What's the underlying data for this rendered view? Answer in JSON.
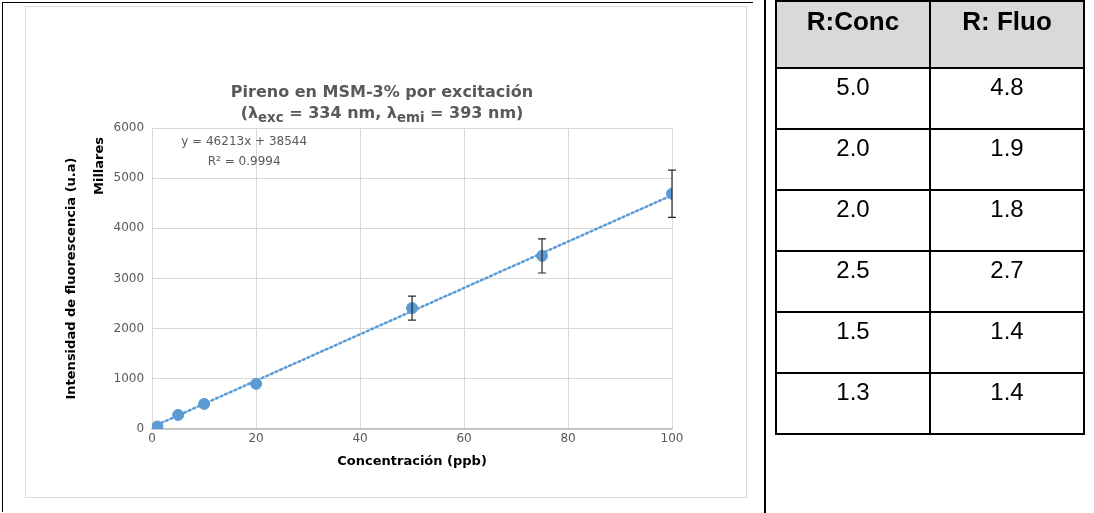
{
  "chart_data": [
    {
      "type": "scatter",
      "title": "Pireno en MSM-3% por excitación",
      "subtitle": "(λ$_{exc}$ = 334 nm, λ$_{emi}$ = 393 nm)",
      "xlabel": "Concentración (ppb)",
      "ylabel": "Intensidad de fluorescencia (u.a)",
      "annotations": [
        "Millares",
        "y = 46213x + 38544",
        "R² = 0.9994"
      ],
      "x": [
        1,
        5,
        10,
        20,
        50,
        75,
        100
      ],
      "series": [
        {
          "color": "#5b9bd5",
          "values": [
            50,
            280,
            500,
            900,
            2410,
            3450,
            4690
          ],
          "errors": [
            null,
            null,
            null,
            null,
            240,
            340,
            470
          ]
        },
        {
          "type": "line",
          "color": "#5b9bd5",
          "line_style": "dotted",
          "marker": "none",
          "x": [
            0,
            100
          ],
          "values": [
            40,
            4660
          ]
        }
      ],
      "marker": "circle",
      "xlim": [
        0,
        100
      ],
      "xticks": [
        0,
        20,
        40,
        60,
        80,
        100
      ],
      "ylim": [
        0,
        6000
      ],
      "yticks": [
        0,
        1000,
        2000,
        3000,
        4000,
        5000,
        6000
      ],
      "grid": true,
      "legend": false
    },
    {
      "type": "other",
      "annotations": [
        "R:Conc",
        "R: Fluo",
        "5.0",
        "4.8",
        "2.0",
        "1.9",
        "2.0",
        "1.8",
        "2.5",
        "2.7",
        "1.5",
        "1.4",
        "1.3",
        "1.4"
      ]
    }
  ]
}
